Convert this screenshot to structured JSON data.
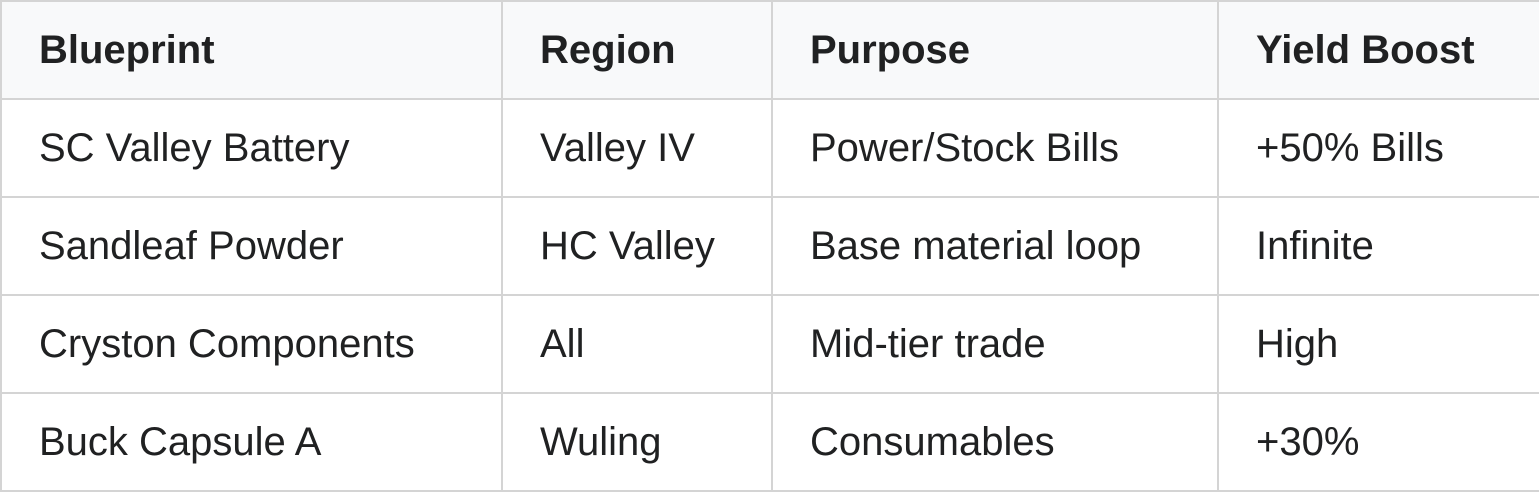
{
  "table": {
    "headers": [
      "Blueprint",
      "Region",
      "Purpose",
      "Yield Boost"
    ],
    "rows": [
      [
        "SC Valley Battery",
        "Valley IV",
        "Power/Stock Bills",
        "+50% Bills"
      ],
      [
        "Sandleaf Powder",
        "HC Valley",
        "Base material loop",
        "Infinite"
      ],
      [
        "Cryston Components",
        "All",
        "Mid-tier trade",
        "High"
      ],
      [
        "Buck Capsule A",
        "Wuling",
        "Consumables",
        "+30%"
      ]
    ]
  },
  "colors": {
    "header_bg": "#f8f9fa",
    "border": "#d4d4d4",
    "text": "#202122"
  }
}
